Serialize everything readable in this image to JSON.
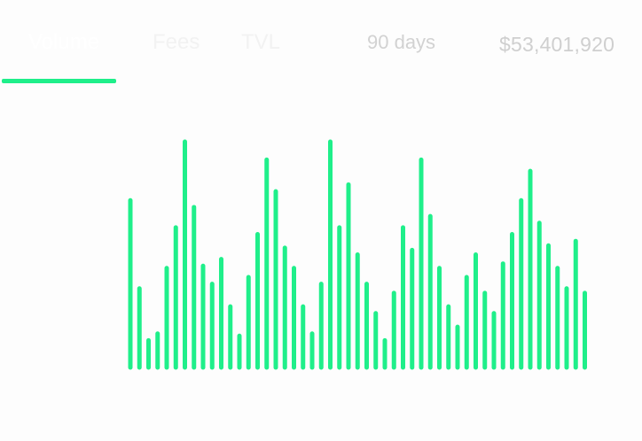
{
  "tabs": [
    {
      "label": "Volume",
      "active": true
    },
    {
      "label": "Fees",
      "active": false
    },
    {
      "label": "TVL",
      "active": false
    }
  ],
  "period": "90 days",
  "total": "$53,401,920",
  "colors": {
    "accent": "#1fef8a",
    "muted_text": "#cfcfcf",
    "background": "#fdfdfd"
  },
  "chart_data": {
    "type": "bar",
    "title": "",
    "xlabel": "",
    "ylabel": "",
    "ylim": [
      0,
      100
    ],
    "grid": false,
    "values": [
      74,
      35,
      12,
      15,
      44,
      62,
      100,
      71,
      45,
      37,
      48,
      27,
      14,
      40,
      59,
      92,
      78,
      53,
      44,
      27,
      15,
      37,
      100,
      62,
      81,
      50,
      37,
      24,
      12,
      33,
      62,
      52,
      92,
      67,
      44,
      27,
      18,
      40,
      50,
      33,
      24,
      46,
      59,
      74,
      87,
      64,
      54,
      44,
      35,
      56,
      33
    ]
  }
}
